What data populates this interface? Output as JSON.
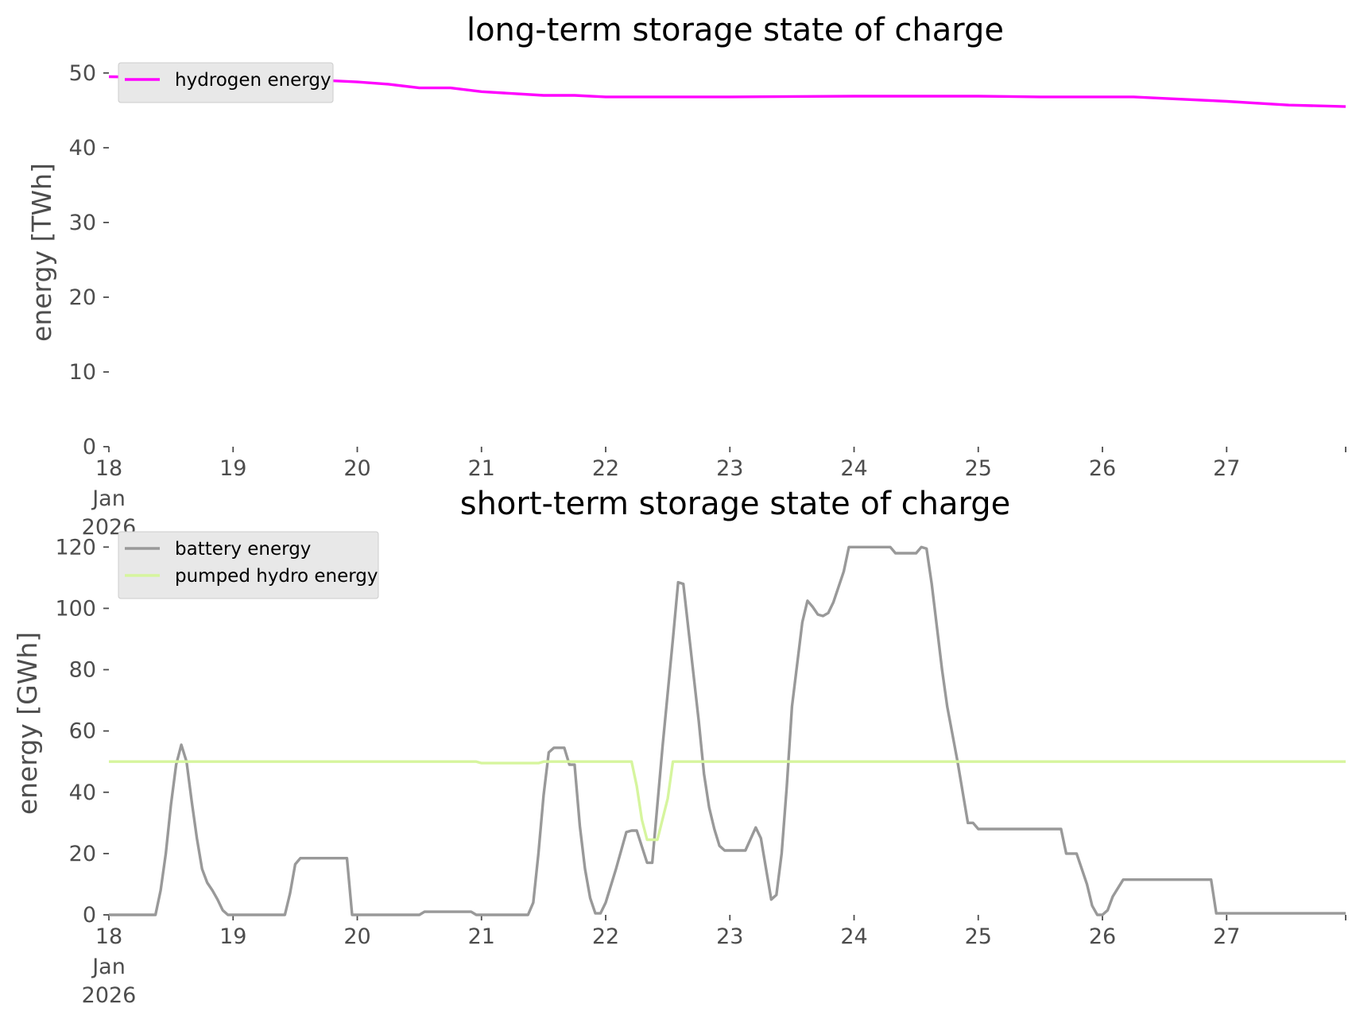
{
  "chart_data": [
    {
      "type": "line",
      "title": "long-term storage state of charge",
      "ylabel": "energy [TWh]",
      "xlabel": "",
      "x_range": [
        "2026-01-18T00:00",
        "2026-01-27T23:00"
      ],
      "ylim": [
        0,
        52
      ],
      "yticks": [
        0,
        10,
        20,
        30,
        40,
        50
      ],
      "xticks": [
        {
          "x": "2026-01-18",
          "label": "18",
          "sub1": "Jan",
          "sub2": "2026"
        },
        {
          "x": "2026-01-19",
          "label": "19"
        },
        {
          "x": "2026-01-20",
          "label": "20"
        },
        {
          "x": "2026-01-21",
          "label": "21"
        },
        {
          "x": "2026-01-22",
          "label": "22"
        },
        {
          "x": "2026-01-23",
          "label": "23"
        },
        {
          "x": "2026-01-24",
          "label": "24"
        },
        {
          "x": "2026-01-25",
          "label": "25"
        },
        {
          "x": "2026-01-26",
          "label": "26"
        },
        {
          "x": "2026-01-27",
          "label": "27"
        },
        {
          "x": "2026-01-27T23:00",
          "label": ""
        }
      ],
      "grid": false,
      "legend_position": "top-left",
      "series": [
        {
          "name": "hydrogen energy",
          "color": "#ff00ff",
          "points": [
            [
              "2026-01-18T00:00",
              49.5
            ],
            [
              "2026-01-18T12:00",
              49.4
            ],
            [
              "2026-01-19T00:00",
              49.3
            ],
            [
              "2026-01-19T12:00",
              49.2
            ],
            [
              "2026-01-20T00:00",
              48.8
            ],
            [
              "2026-01-20T06:00",
              48.5
            ],
            [
              "2026-01-20T12:00",
              48.0
            ],
            [
              "2026-01-20T18:00",
              48.0
            ],
            [
              "2026-01-21T00:00",
              47.5
            ],
            [
              "2026-01-21T12:00",
              47.0
            ],
            [
              "2026-01-21T18:00",
              47.0
            ],
            [
              "2026-01-22T00:00",
              46.8
            ],
            [
              "2026-01-23T00:00",
              46.8
            ],
            [
              "2026-01-24T00:00",
              46.9
            ],
            [
              "2026-01-25T00:00",
              46.9
            ],
            [
              "2026-01-25T12:00",
              46.8
            ],
            [
              "2026-01-26T06:00",
              46.8
            ],
            [
              "2026-01-26T12:00",
              46.6
            ],
            [
              "2026-01-27T00:00",
              46.2
            ],
            [
              "2026-01-27T12:00",
              45.7
            ],
            [
              "2026-01-27T23:00",
              45.5
            ]
          ]
        }
      ]
    },
    {
      "type": "line",
      "title": "short-term storage state of charge",
      "ylabel": "energy [GWh]",
      "xlabel": "",
      "x_range": [
        "2026-01-18T00:00",
        "2026-01-27T23:00"
      ],
      "ylim": [
        0,
        125
      ],
      "yticks": [
        0,
        20,
        40,
        60,
        80,
        100,
        120
      ],
      "xticks": [
        {
          "x": "2026-01-18",
          "label": "18",
          "sub1": "Jan",
          "sub2": "2026"
        },
        {
          "x": "2026-01-19",
          "label": "19"
        },
        {
          "x": "2026-01-20",
          "label": "20"
        },
        {
          "x": "2026-01-21",
          "label": "21"
        },
        {
          "x": "2026-01-22",
          "label": "22"
        },
        {
          "x": "2026-01-23",
          "label": "23"
        },
        {
          "x": "2026-01-24",
          "label": "24"
        },
        {
          "x": "2026-01-25",
          "label": "25"
        },
        {
          "x": "2026-01-26",
          "label": "26"
        },
        {
          "x": "2026-01-27",
          "label": "27"
        },
        {
          "x": "2026-01-27T23:00",
          "label": ""
        }
      ],
      "grid": false,
      "legend_position": "top-left",
      "series": [
        {
          "name": "battery energy",
          "color": "#999999",
          "points": [
            [
              "2026-01-18T00:00",
              0
            ],
            [
              "2026-01-18T09:00",
              0
            ],
            [
              "2026-01-18T10:00",
              8
            ],
            [
              "2026-01-18T11:00",
              20
            ],
            [
              "2026-01-18T12:00",
              36
            ],
            [
              "2026-01-18T13:00",
              49
            ],
            [
              "2026-01-18T14:00",
              55.5
            ],
            [
              "2026-01-18T15:00",
              50
            ],
            [
              "2026-01-18T16:00",
              37
            ],
            [
              "2026-01-18T17:00",
              25
            ],
            [
              "2026-01-18T18:00",
              15
            ],
            [
              "2026-01-18T19:00",
              10.5
            ],
            [
              "2026-01-18T20:00",
              8
            ],
            [
              "2026-01-18T21:00",
              5
            ],
            [
              "2026-01-18T22:00",
              1.5
            ],
            [
              "2026-01-18T23:00",
              0
            ],
            [
              "2026-01-19T10:00",
              0
            ],
            [
              "2026-01-19T11:00",
              7
            ],
            [
              "2026-01-19T12:00",
              16.5
            ],
            [
              "2026-01-19T13:00",
              18.5
            ],
            [
              "2026-01-19T22:00",
              18.5
            ],
            [
              "2026-01-19T23:00",
              0
            ],
            [
              "2026-01-20T12:00",
              0
            ],
            [
              "2026-01-20T13:00",
              1
            ],
            [
              "2026-01-20T22:00",
              1
            ],
            [
              "2026-01-20T23:00",
              0
            ],
            [
              "2026-01-21T09:00",
              0
            ],
            [
              "2026-01-21T10:00",
              4
            ],
            [
              "2026-01-21T11:00",
              20
            ],
            [
              "2026-01-21T12:00",
              39
            ],
            [
              "2026-01-21T13:00",
              53
            ],
            [
              "2026-01-21T14:00",
              54.5
            ],
            [
              "2026-01-21T16:00",
              54.5
            ],
            [
              "2026-01-21T17:00",
              49
            ],
            [
              "2026-01-21T18:00",
              49
            ],
            [
              "2026-01-21T19:00",
              29
            ],
            [
              "2026-01-21T20:00",
              15
            ],
            [
              "2026-01-21T21:00",
              5.5
            ],
            [
              "2026-01-21T22:00",
              0.5
            ],
            [
              "2026-01-21T23:00",
              0.5
            ],
            [
              "2026-01-22T00:00",
              4
            ],
            [
              "2026-01-22T02:00",
              15
            ],
            [
              "2026-01-22T04:00",
              27
            ],
            [
              "2026-01-22T05:00",
              27.5
            ],
            [
              "2026-01-22T06:00",
              27.5
            ],
            [
              "2026-01-22T08:00",
              17
            ],
            [
              "2026-01-22T09:00",
              17
            ],
            [
              "2026-01-22T11:00",
              55
            ],
            [
              "2026-01-22T13:00",
              90
            ],
            [
              "2026-01-22T14:00",
              108.5
            ],
            [
              "2026-01-22T15:00",
              108
            ],
            [
              "2026-01-22T16:00",
              93
            ],
            [
              "2026-01-22T18:00",
              63
            ],
            [
              "2026-01-22T19:00",
              46
            ],
            [
              "2026-01-22T20:00",
              35
            ],
            [
              "2026-01-22T21:00",
              28
            ],
            [
              "2026-01-22T22:00",
              22.5
            ],
            [
              "2026-01-22T23:00",
              21
            ],
            [
              "2026-01-23T03:00",
              21
            ],
            [
              "2026-01-23T05:00",
              28.5
            ],
            [
              "2026-01-23T06:00",
              25
            ],
            [
              "2026-01-23T07:00",
              15
            ],
            [
              "2026-01-23T08:00",
              5
            ],
            [
              "2026-01-23T09:00",
              6.5
            ],
            [
              "2026-01-23T10:00",
              20
            ],
            [
              "2026-01-23T11:00",
              42
            ],
            [
              "2026-01-23T12:00",
              68
            ],
            [
              "2026-01-23T14:00",
              95.5
            ],
            [
              "2026-01-23T15:00",
              102.5
            ],
            [
              "2026-01-23T16:00",
              100.5
            ],
            [
              "2026-01-23T17:00",
              98
            ],
            [
              "2026-01-23T18:00",
              97.5
            ],
            [
              "2026-01-23T19:00",
              98.5
            ],
            [
              "2026-01-23T20:00",
              102
            ],
            [
              "2026-01-23T22:00",
              112
            ],
            [
              "2026-01-23T23:00",
              120
            ],
            [
              "2026-01-24T07:00",
              120
            ],
            [
              "2026-01-24T08:00",
              118
            ],
            [
              "2026-01-24T12:00",
              118
            ],
            [
              "2026-01-24T13:00",
              120
            ],
            [
              "2026-01-24T14:00",
              119.5
            ],
            [
              "2026-01-24T15:00",
              108
            ],
            [
              "2026-01-24T17:00",
              80
            ],
            [
              "2026-01-24T18:00",
              68
            ],
            [
              "2026-01-24T20:00",
              50
            ],
            [
              "2026-01-24T22:00",
              30
            ],
            [
              "2026-01-24T23:00",
              30
            ],
            [
              "2026-01-25T00:00",
              28
            ],
            [
              "2026-01-25T16:00",
              28
            ],
            [
              "2026-01-25T17:00",
              20
            ],
            [
              "2026-01-25T19:00",
              20
            ],
            [
              "2026-01-25T21:00",
              10
            ],
            [
              "2026-01-25T22:00",
              3
            ],
            [
              "2026-01-25T23:00",
              0
            ],
            [
              "2026-01-26T00:00",
              0
            ],
            [
              "2026-01-26T01:00",
              1.5
            ],
            [
              "2026-01-26T02:00",
              6
            ],
            [
              "2026-01-26T04:00",
              11.5
            ],
            [
              "2026-01-26T21:00",
              11.5
            ],
            [
              "2026-01-26T22:00",
              0.5
            ],
            [
              "2026-01-27T23:00",
              0.5
            ]
          ]
        },
        {
          "name": "pumped hydro energy",
          "color": "#d6f59e",
          "points": [
            [
              "2026-01-18T00:00",
              50
            ],
            [
              "2026-01-20T23:00",
              50
            ],
            [
              "2026-01-21T00:00",
              49.5
            ],
            [
              "2026-01-21T11:00",
              49.5
            ],
            [
              "2026-01-21T12:00",
              50
            ],
            [
              "2026-01-22T05:00",
              50
            ],
            [
              "2026-01-22T06:00",
              42
            ],
            [
              "2026-01-22T07:00",
              31
            ],
            [
              "2026-01-22T08:00",
              24.5
            ],
            [
              "2026-01-22T10:00",
              24.5
            ],
            [
              "2026-01-22T12:00",
              38
            ],
            [
              "2026-01-22T13:00",
              50
            ],
            [
              "2026-01-27T23:00",
              50
            ]
          ]
        }
      ]
    }
  ]
}
